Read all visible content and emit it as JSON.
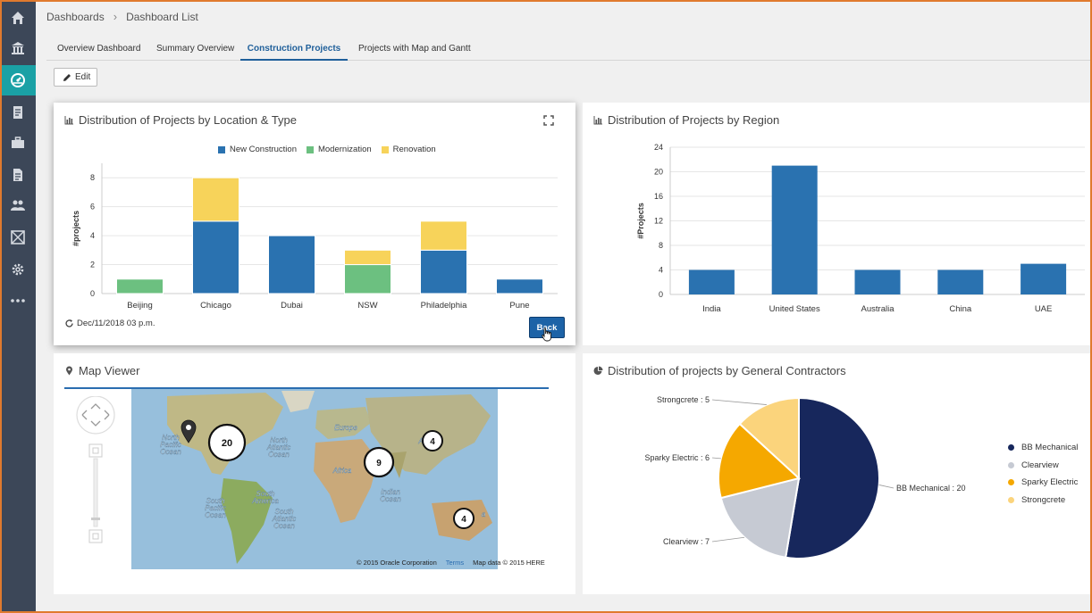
{
  "breadcrumb": {
    "root": "Dashboards",
    "current": "Dashboard List"
  },
  "tabs": [
    {
      "label": "Overview Dashboard"
    },
    {
      "label": "Summary Overview"
    },
    {
      "label": "Construction Projects"
    },
    {
      "label": "Projects with Map and Gantt"
    }
  ],
  "active_tab": "Construction Projects",
  "edit_label": "Edit",
  "sidebar": {
    "icons": [
      "home-icon",
      "bank-icon",
      "dashboard-icon",
      "documents-icon",
      "briefcase-icon",
      "report-icon",
      "users-icon",
      "grid-icon",
      "gear-icon",
      "more-icon"
    ],
    "active": "dashboard-icon",
    "colors": {
      "bg": "#3c4758",
      "active": "#1aa1a5"
    }
  },
  "panel_location": {
    "title": "Distribution of Projects by Location & Type",
    "refresh_text": "Dec/11/2018 03 p.m.",
    "back_label": "Back"
  },
  "panel_region": {
    "title": "Distribution of Projects by Region"
  },
  "panel_map": {
    "title": "Map Viewer",
    "clusters": [
      "20",
      "9",
      "4",
      "4"
    ],
    "credit": "© 2015 Oracle Corporation",
    "terms": "Terms",
    "mapdata": "Map data © 2015 HERE",
    "labels": {
      "north_pacific": [
        "North",
        "Pacific",
        "Ocean"
      ],
      "north_atlantic": [
        "North",
        "Atlantic",
        "Ocean"
      ],
      "south_pacific": [
        "South",
        "Pacific",
        "Ocean"
      ],
      "south_atlantic": [
        "South",
        "Atlantic",
        "Ocean"
      ],
      "indian": [
        "Indian",
        "Ocean"
      ],
      "europe": "Europe",
      "africa": "Africa",
      "south_america": [
        "South",
        "America"
      ],
      "asia_fragment": "A",
      "america_fragment": "A",
      "australia_fragment": "a"
    }
  },
  "panel_pie": {
    "title": "Distribution of projects by General Contractors",
    "legend": [
      "BB Mechanical",
      "Clearview",
      "Sparky Electric",
      "Strongcrete"
    ]
  },
  "chart_data": [
    {
      "type": "bar",
      "stacked": true,
      "title": "Distribution of Projects by Location & Type",
      "categories": [
        "Beijing",
        "Chicago",
        "Dubai",
        "NSW",
        "Philadelphia",
        "Pune"
      ],
      "series": [
        {
          "name": "New Construction",
          "color": "#2a72b0",
          "values": [
            0,
            5,
            4,
            0,
            3,
            1
          ]
        },
        {
          "name": "Modernization",
          "color": "#6cc080",
          "values": [
            1,
            0,
            0,
            2,
            0,
            0
          ]
        },
        {
          "name": "Renovation",
          "color": "#f7d35a",
          "values": [
            0,
            3,
            0,
            1,
            2,
            0
          ]
        }
      ],
      "ylabel": "#projects",
      "ylim": [
        0,
        9
      ],
      "yticks": [
        0,
        2,
        4,
        6,
        8
      ],
      "grid": true,
      "legend": "top"
    },
    {
      "type": "bar",
      "title": "Distribution of Projects by Region",
      "categories": [
        "India",
        "United States",
        "Australia",
        "China",
        "UAE"
      ],
      "values": [
        4,
        21,
        4,
        4,
        5
      ],
      "color": "#2a72b0",
      "ylabel": "#Projects",
      "ylim": [
        0,
        24
      ],
      "yticks": [
        0,
        4,
        8,
        12,
        16,
        20,
        24
      ],
      "grid": true
    },
    {
      "type": "pie",
      "title": "Distribution of projects by General Contractors",
      "labels": [
        "BB Mechanical",
        "Clearview",
        "Sparky Electric",
        "Strongcrete"
      ],
      "values": [
        20,
        7,
        6,
        5
      ],
      "colors": [
        "#17275c",
        "#c6cad3",
        "#f5a800",
        "#fbd47c"
      ],
      "legend": "right"
    }
  ]
}
